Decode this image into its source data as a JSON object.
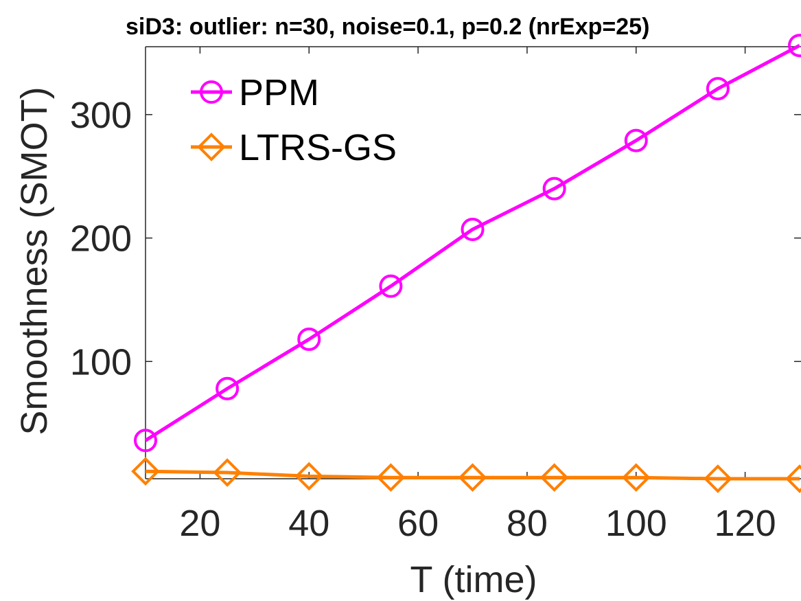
{
  "chart_data": {
    "type": "line",
    "title": "siD3: outlier: n=30, noise=0.1, p=0.2 (nrExp=25)",
    "xlabel": "T (time)",
    "ylabel": "Smoothness (SMOT)",
    "xlim": [
      10,
      130
    ],
    "ylim": [
      5,
      355
    ],
    "xticks": [
      20,
      40,
      60,
      80,
      100,
      120
    ],
    "yticks": [
      100,
      200,
      300
    ],
    "legend_position": "top-left",
    "grid": false,
    "x": [
      10,
      25,
      40,
      55,
      70,
      85,
      100,
      115,
      130
    ],
    "series": [
      {
        "name": "PPM",
        "color": "#ff00ff",
        "marker": "circle",
        "values": [
          36,
          78,
          118,
          161,
          207,
          240,
          279,
          321,
          356
        ]
      },
      {
        "name": "LTRS-GS",
        "color": "#ff8000",
        "marker": "diamond",
        "values": [
          11,
          10,
          7,
          6,
          6,
          6,
          6,
          5,
          5
        ]
      }
    ]
  }
}
